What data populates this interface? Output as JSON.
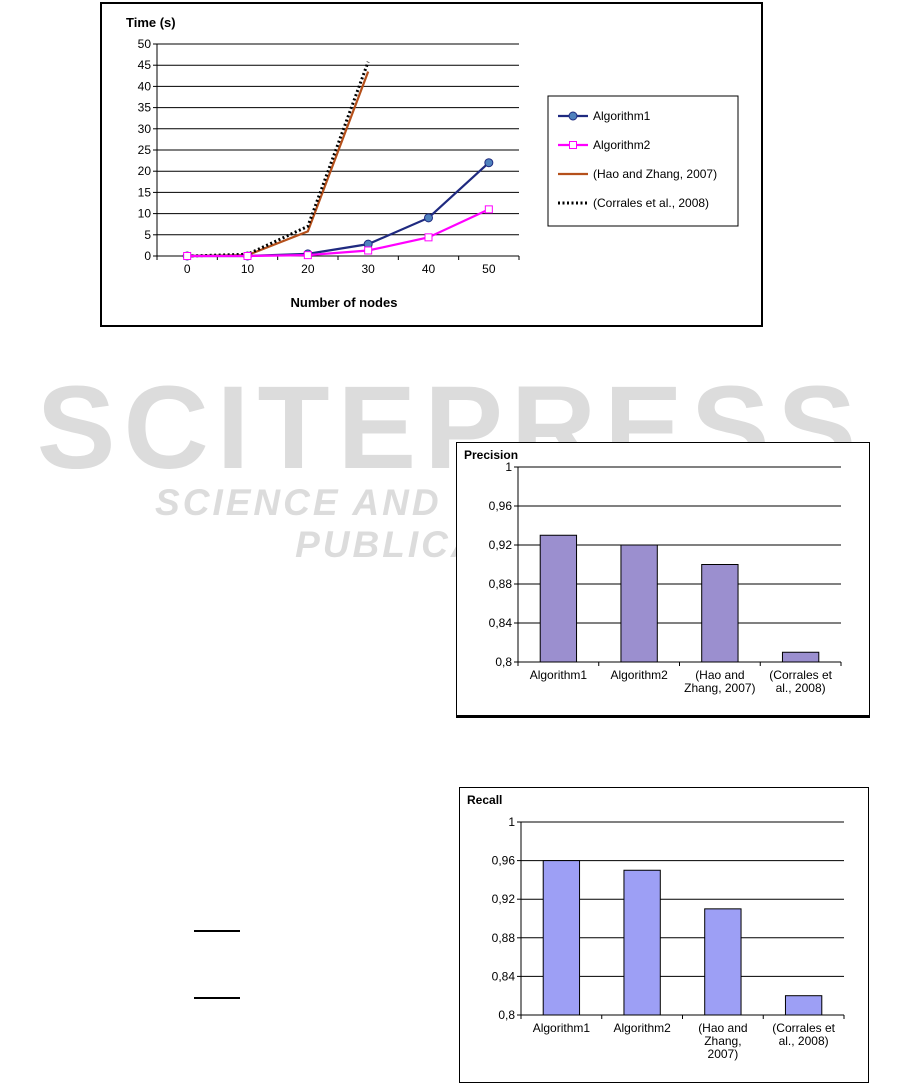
{
  "watermark": {
    "title": "SCITEPRESS",
    "subtitle": "SCIENCE AND TECHNOLOGY PUBLICATIONS"
  },
  "chart_data": [
    {
      "type": "line",
      "title": "Time (s)",
      "xlabel": "Number of nodes",
      "ylabel": "",
      "x": [
        0,
        10,
        20,
        30,
        40,
        50
      ],
      "ylim": [
        0,
        50
      ],
      "yticks": [
        "0",
        "5",
        "10",
        "15",
        "20",
        "25",
        "30",
        "35",
        "40",
        "45",
        "50"
      ],
      "grid": true,
      "legend": "right",
      "series": [
        {
          "name": "Algorithm1",
          "x": [
            0,
            10,
            20,
            30,
            40,
            50
          ],
          "values": [
            0,
            0,
            0.5,
            2.8,
            9,
            22
          ],
          "color": "#1f2a80",
          "marker": "circle"
        },
        {
          "name": "Algorithm2",
          "x": [
            0,
            10,
            20,
            30,
            40,
            50
          ],
          "values": [
            0,
            0,
            0.2,
            1.3,
            4.4,
            11
          ],
          "color": "#ff00ff",
          "marker": "square"
        },
        {
          "name": "(Hao and Zhang, 2007)",
          "x": [
            0,
            10,
            20,
            30
          ],
          "values": [
            0,
            0.2,
            5.8,
            43.5
          ],
          "color": "#b5501b",
          "marker": "none"
        },
        {
          "name": "(Corrales et al., 2008)",
          "x": [
            0,
            10,
            20,
            30
          ],
          "values": [
            0,
            0.4,
            7,
            45.8
          ],
          "color": "#000000",
          "marker": "none",
          "dash": "dotted"
        }
      ]
    },
    {
      "type": "bar",
      "title": "Precision",
      "categories": [
        "Algorithm1",
        "Algorithm2",
        "(Hao and Zhang, 2007)",
        "(Corrales et al., 2008)"
      ],
      "category_lines": [
        [
          "Algorithm1"
        ],
        [
          "Algorithm2"
        ],
        [
          "(Hao and",
          "Zhang, 2007)"
        ],
        [
          "(Corrales et",
          "al., 2008)"
        ]
      ],
      "values": [
        0.93,
        0.92,
        0.9,
        0.81
      ],
      "ylim": [
        0.8,
        1
      ],
      "yticks": [
        "0,8",
        "0,84",
        "0,88",
        "0,92",
        "0,96",
        "1"
      ],
      "color": "#9b8fcf",
      "grid": true
    },
    {
      "type": "bar",
      "title": "Recall",
      "categories": [
        "Algorithm1",
        "Algorithm2",
        "(Hao and Zhang, 2007)",
        "(Corrales et al., 2008)"
      ],
      "category_lines": [
        [
          "Algorithm1"
        ],
        [
          "Algorithm2"
        ],
        [
          "(Hao and",
          "Zhang,",
          "2007)"
        ],
        [
          "(Corrales et",
          "al., 2008)"
        ]
      ],
      "values": [
        0.96,
        0.95,
        0.91,
        0.82
      ],
      "ylim": [
        0.8,
        1
      ],
      "yticks": [
        "0,8",
        "0,84",
        "0,88",
        "0,92",
        "0,96",
        "1"
      ],
      "color": "#9d9ff5",
      "grid": true
    }
  ]
}
